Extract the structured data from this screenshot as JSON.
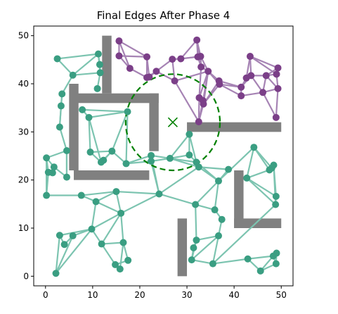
{
  "chart_data": {
    "type": "scatter",
    "title": "Final Edges After Phase 4",
    "xlabel": "",
    "ylabel": "",
    "xlim": [
      -2.5,
      52.5
    ],
    "ylim": [
      -2,
      52
    ],
    "xticks": [
      0,
      10,
      20,
      30,
      40,
      50
    ],
    "yticks": [
      0,
      10,
      20,
      30,
      40,
      50
    ],
    "grid": false,
    "colors": {
      "green_nodes": "#3a9e82",
      "green_edges": "#7cc4b0",
      "purple_nodes": "#7b3f88",
      "purple_edges": "#a683b4",
      "obstacles": "#808080",
      "circle": "#008000"
    },
    "obstacles": [
      {
        "x0": 12,
        "x1": 14,
        "y0": 38,
        "y1": 50
      },
      {
        "x0": 6,
        "x1": 24,
        "y0": 36,
        "y1": 38
      },
      {
        "x0": 5,
        "x1": 7,
        "y0": 22,
        "y1": 40
      },
      {
        "x0": 6,
        "x1": 22,
        "y0": 20,
        "y1": 22
      },
      {
        "x0": 22,
        "x1": 24,
        "y0": 26,
        "y1": 38
      },
      {
        "x0": 30,
        "x1": 50,
        "y0": 30,
        "y1": 32
      },
      {
        "x0": 40,
        "x1": 42,
        "y0": 10,
        "y1": 22
      },
      {
        "x0": 40,
        "x1": 50,
        "y0": 10,
        "y1": 12
      },
      {
        "x0": 28,
        "x1": 30,
        "y0": 0,
        "y1": 12
      }
    ],
    "circle": {
      "cx": 27,
      "cy": 32,
      "r": 10
    },
    "target_marker": {
      "x": 27,
      "y": 32
    },
    "green_nodes": [
      [
        2.5,
        45.2
      ],
      [
        5.8,
        41.8
      ],
      [
        11.2,
        46.2
      ],
      [
        11.5,
        44.0
      ],
      [
        11.6,
        42.3
      ],
      [
        11.0,
        39.0
      ],
      [
        3.5,
        37.9
      ],
      [
        3.3,
        35.4
      ],
      [
        3.0,
        31.0
      ],
      [
        4.5,
        26.1
      ],
      [
        0.2,
        24.6
      ],
      [
        0.6,
        21.6
      ],
      [
        1.5,
        21.5
      ],
      [
        1.8,
        22.7
      ],
      [
        4.5,
        20.6
      ],
      [
        0.2,
        16.8
      ],
      [
        7.8,
        34.6
      ],
      [
        9.2,
        33.0
      ],
      [
        17.4,
        34.2
      ],
      [
        9.5,
        25.8
      ],
      [
        11.8,
        23.7
      ],
      [
        12.3,
        24.1
      ],
      [
        14.1,
        26.0
      ],
      [
        17.1,
        23.4
      ],
      [
        22.4,
        23.9
      ],
      [
        22.4,
        25.1
      ],
      [
        26.4,
        24.5
      ],
      [
        30.5,
        29.5
      ],
      [
        30.5,
        25.2
      ],
      [
        32.0,
        23.7
      ],
      [
        32.5,
        22.7
      ],
      [
        7.6,
        16.8
      ],
      [
        10.7,
        15.5
      ],
      [
        15.0,
        17.6
      ],
      [
        16.0,
        13.1
      ],
      [
        24.1,
        17.1
      ],
      [
        9.8,
        9.8
      ],
      [
        11.9,
        6.7
      ],
      [
        16.5,
        7.0
      ],
      [
        17.5,
        3.3
      ],
      [
        14.8,
        2.4
      ],
      [
        15.8,
        1.5
      ],
      [
        3.0,
        8.5
      ],
      [
        4.0,
        6.6
      ],
      [
        5.8,
        8.4
      ],
      [
        2.2,
        0.6
      ],
      [
        36.7,
        19.8
      ],
      [
        38.8,
        22.2
      ],
      [
        31.8,
        14.9
      ],
      [
        35.9,
        13.8
      ],
      [
        37.4,
        11.8
      ],
      [
        32.0,
        7.5
      ],
      [
        31.4,
        5.9
      ],
      [
        36.7,
        8.4
      ],
      [
        31.0,
        3.4
      ],
      [
        35.5,
        2.6
      ],
      [
        42.7,
        20.4
      ],
      [
        44.2,
        26.8
      ],
      [
        47.5,
        22.1
      ],
      [
        48.0,
        22.5
      ],
      [
        48.4,
        23.1
      ],
      [
        48.9,
        16.6
      ],
      [
        48.8,
        14.9
      ],
      [
        42.9,
        3.6
      ],
      [
        45.6,
        1.1
      ],
      [
        48.3,
        4.2
      ],
      [
        49.0,
        4.8
      ],
      [
        48.9,
        2.6
      ]
    ],
    "purple_nodes": [
      [
        15.6,
        48.9
      ],
      [
        21.5,
        45.6
      ],
      [
        15.6,
        45.8
      ],
      [
        17.9,
        43.2
      ],
      [
        21.5,
        41.3
      ],
      [
        22.0,
        41.4
      ],
      [
        23.5,
        42.6
      ],
      [
        26.9,
        45.1
      ],
      [
        28.7,
        45.2
      ],
      [
        32.1,
        49.1
      ],
      [
        32.3,
        45.6
      ],
      [
        32.9,
        45.7
      ],
      [
        33.0,
        43.5
      ],
      [
        34.5,
        42.6
      ],
      [
        27.4,
        40.6
      ],
      [
        32.6,
        37.1
      ],
      [
        33.4,
        36.5
      ],
      [
        33.5,
        35.8
      ],
      [
        32.5,
        32.1
      ],
      [
        36.8,
        40.6
      ],
      [
        36.9,
        39.9
      ],
      [
        41.5,
        39.3
      ],
      [
        42.6,
        41.2
      ],
      [
        43.4,
        45.7
      ],
      [
        43.6,
        41.7
      ],
      [
        46.1,
        38.2
      ],
      [
        46.8,
        41.7
      ],
      [
        49.3,
        43.3
      ],
      [
        49.0,
        42.0
      ],
      [
        49.3,
        39.0
      ],
      [
        48.9,
        33.0
      ],
      [
        41.5,
        37.5
      ]
    ],
    "green_edges": [
      [
        0,
        1
      ],
      [
        0,
        2
      ],
      [
        1,
        2
      ],
      [
        2,
        3
      ],
      [
        3,
        4
      ],
      [
        4,
        5
      ],
      [
        1,
        4
      ],
      [
        2,
        4
      ],
      [
        1,
        6
      ],
      [
        6,
        7
      ],
      [
        7,
        8
      ],
      [
        8,
        9
      ],
      [
        6,
        8
      ],
      [
        9,
        10
      ],
      [
        10,
        11
      ],
      [
        11,
        12
      ],
      [
        12,
        13
      ],
      [
        10,
        13
      ],
      [
        9,
        14
      ],
      [
        13,
        14
      ],
      [
        11,
        15
      ],
      [
        10,
        15
      ],
      [
        15,
        31
      ],
      [
        14,
        9
      ],
      [
        16,
        17
      ],
      [
        16,
        18
      ],
      [
        17,
        18
      ],
      [
        17,
        19
      ],
      [
        17,
        20
      ],
      [
        18,
        23
      ],
      [
        19,
        20
      ],
      [
        19,
        22
      ],
      [
        20,
        22
      ],
      [
        22,
        23
      ],
      [
        21,
        22
      ],
      [
        18,
        22
      ],
      [
        23,
        24
      ],
      [
        23,
        25
      ],
      [
        24,
        25
      ],
      [
        24,
        26
      ],
      [
        25,
        26
      ],
      [
        26,
        27
      ],
      [
        26,
        28
      ],
      [
        27,
        28
      ],
      [
        28,
        29
      ],
      [
        29,
        30
      ],
      [
        27,
        29
      ],
      [
        26,
        29
      ],
      [
        24,
        35
      ],
      [
        25,
        35
      ],
      [
        35,
        30
      ],
      [
        35,
        48
      ],
      [
        30,
        46
      ],
      [
        29,
        46
      ],
      [
        46,
        47
      ],
      [
        46,
        49
      ],
      [
        46,
        48
      ],
      [
        48,
        49
      ],
      [
        49,
        50
      ],
      [
        50,
        53
      ],
      [
        48,
        51
      ],
      [
        51,
        52
      ],
      [
        51,
        53
      ],
      [
        53,
        54
      ],
      [
        53,
        55
      ],
      [
        52,
        54
      ],
      [
        54,
        55
      ],
      [
        51,
        54
      ],
      [
        31,
        32
      ],
      [
        31,
        33
      ],
      [
        32,
        33
      ],
      [
        32,
        34
      ],
      [
        33,
        34
      ],
      [
        34,
        35
      ],
      [
        33,
        35
      ],
      [
        32,
        36
      ],
      [
        36,
        37
      ],
      [
        36,
        34
      ],
      [
        37,
        38
      ],
      [
        37,
        40
      ],
      [
        38,
        39
      ],
      [
        39,
        40
      ],
      [
        40,
        41
      ],
      [
        38,
        41
      ],
      [
        34,
        38
      ],
      [
        36,
        42
      ],
      [
        36,
        44
      ],
      [
        42,
        43
      ],
      [
        43,
        44
      ],
      [
        42,
        45
      ],
      [
        44,
        45
      ],
      [
        36,
        45
      ],
      [
        37,
        34
      ],
      [
        55,
        63
      ],
      [
        63,
        64
      ],
      [
        63,
        65
      ],
      [
        64,
        65
      ],
      [
        65,
        66
      ],
      [
        66,
        67
      ],
      [
        65,
        67
      ],
      [
        64,
        67
      ],
      [
        55,
        62
      ],
      [
        62,
        61
      ],
      [
        61,
        60
      ],
      [
        60,
        59
      ],
      [
        59,
        58
      ],
      [
        58,
        56
      ],
      [
        56,
        57
      ],
      [
        57,
        59
      ],
      [
        57,
        58
      ],
      [
        56,
        61
      ],
      [
        57,
        46
      ],
      [
        47,
        30
      ],
      [
        56,
        62
      ],
      [
        60,
        62
      ],
      [
        30,
        26
      ]
    ],
    "purple_edges": [
      [
        0,
        1
      ],
      [
        0,
        2
      ],
      [
        0,
        3
      ],
      [
        1,
        2
      ],
      [
        1,
        4
      ],
      [
        1,
        5
      ],
      [
        2,
        3
      ],
      [
        3,
        4
      ],
      [
        4,
        5
      ],
      [
        5,
        6
      ],
      [
        4,
        6
      ],
      [
        6,
        7
      ],
      [
        6,
        14
      ],
      [
        7,
        8
      ],
      [
        7,
        14
      ],
      [
        8,
        9
      ],
      [
        8,
        10
      ],
      [
        8,
        11
      ],
      [
        9,
        10
      ],
      [
        9,
        11
      ],
      [
        9,
        12
      ],
      [
        10,
        11
      ],
      [
        10,
        12
      ],
      [
        11,
        12
      ],
      [
        12,
        13
      ],
      [
        13,
        14
      ],
      [
        11,
        13
      ],
      [
        12,
        15
      ],
      [
        13,
        15
      ],
      [
        13,
        16
      ],
      [
        13,
        17
      ],
      [
        15,
        16
      ],
      [
        15,
        17
      ],
      [
        16,
        17
      ],
      [
        15,
        18
      ],
      [
        16,
        18
      ],
      [
        17,
        18
      ],
      [
        14,
        18
      ],
      [
        13,
        19
      ],
      [
        13,
        20
      ],
      [
        19,
        20
      ],
      [
        19,
        21
      ],
      [
        20,
        21
      ],
      [
        20,
        31
      ],
      [
        21,
        22
      ],
      [
        21,
        24
      ],
      [
        22,
        23
      ],
      [
        22,
        24
      ],
      [
        23,
        24
      ],
      [
        23,
        27
      ],
      [
        23,
        28
      ],
      [
        24,
        25
      ],
      [
        24,
        26
      ],
      [
        25,
        26
      ],
      [
        26,
        27
      ],
      [
        26,
        28
      ],
      [
        27,
        28
      ],
      [
        28,
        29
      ],
      [
        26,
        29
      ],
      [
        25,
        29
      ],
      [
        29,
        30
      ],
      [
        25,
        30
      ],
      [
        21,
        31
      ],
      [
        31,
        25
      ],
      [
        19,
        17
      ],
      [
        20,
        17
      ]
    ]
  }
}
